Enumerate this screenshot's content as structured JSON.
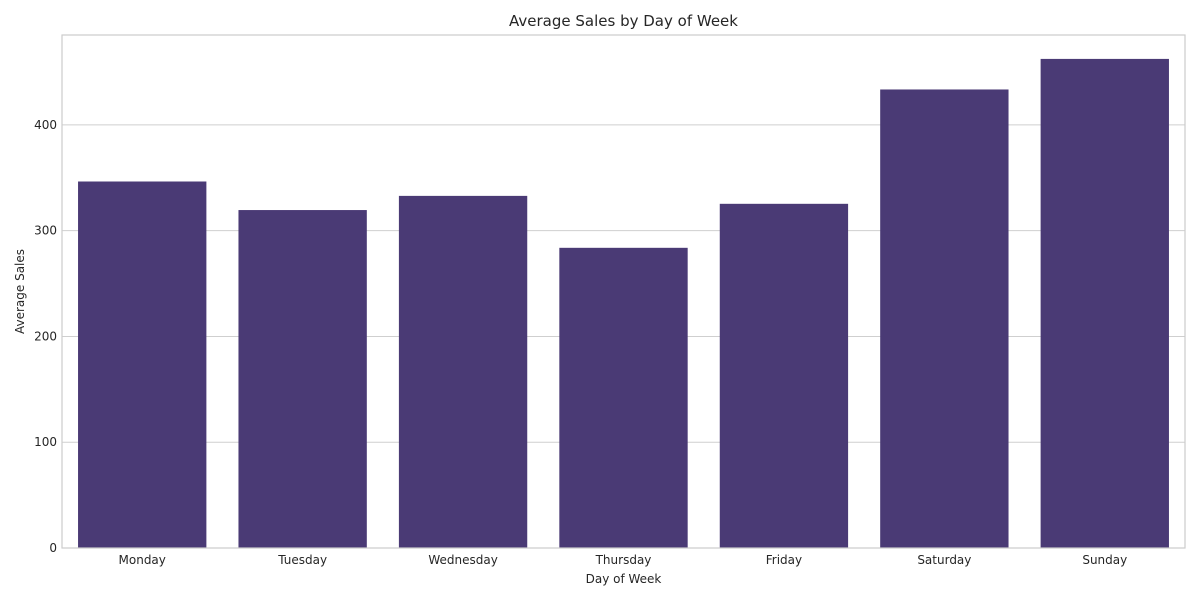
{
  "chart_data": {
    "type": "bar",
    "title": "Average Sales by Day of Week",
    "xlabel": "Day of Week",
    "ylabel": "Average Sales",
    "categories": [
      "Monday",
      "Tuesday",
      "Wednesday",
      "Thursday",
      "Friday",
      "Saturday",
      "Sunday"
    ],
    "values": [
      346.5,
      319.5,
      332.9,
      283.8,
      325.4,
      433.5,
      462.4
    ],
    "ylim": [
      0,
      485
    ],
    "yticks": [
      0,
      100,
      200,
      300,
      400
    ],
    "grid": true,
    "legend": "none",
    "colors": {
      "bar": "#4a3a75",
      "grid": "#cfcfcf",
      "frame": "#cccccc",
      "text": "#262626"
    }
  }
}
